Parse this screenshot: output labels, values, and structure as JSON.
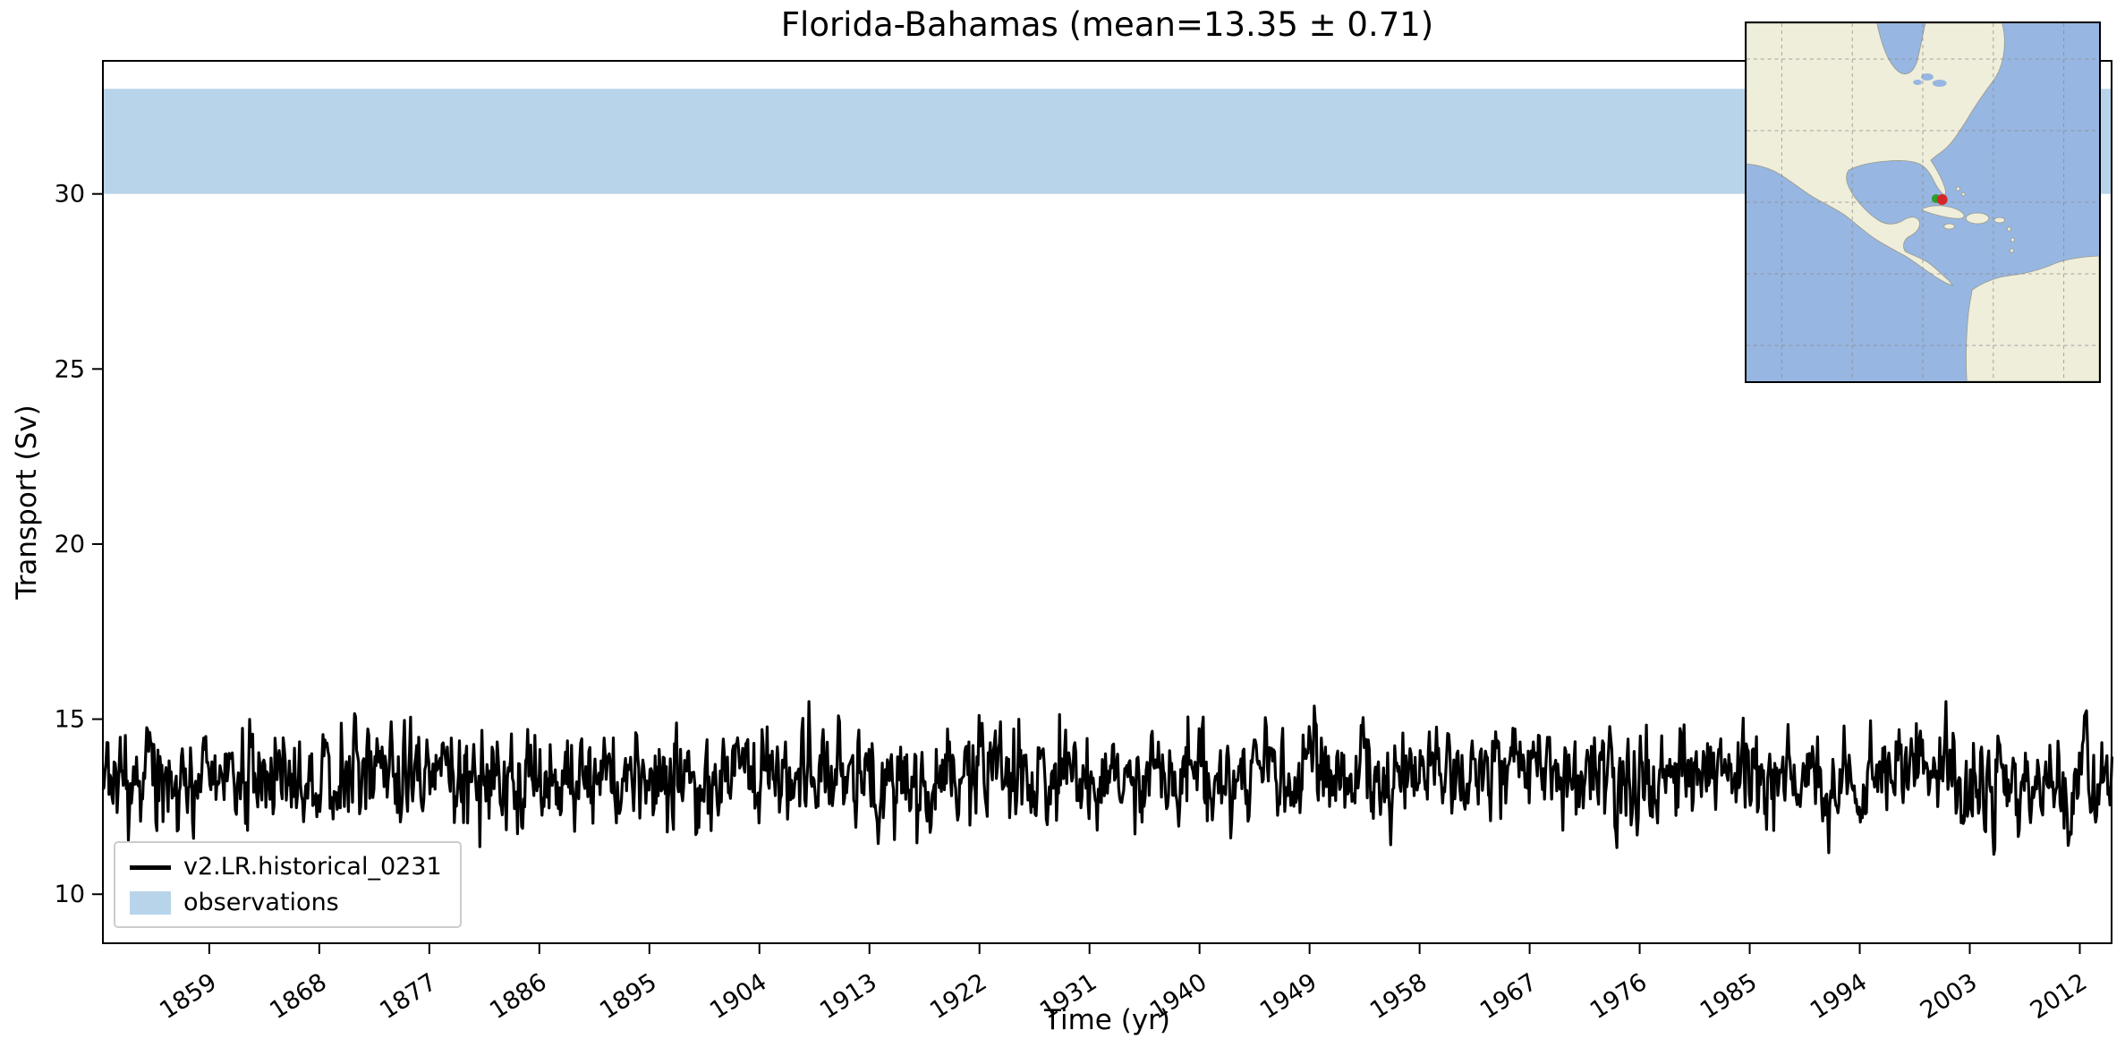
{
  "chart_data": {
    "type": "line",
    "title": "Florida-Bahamas (mean=13.35 ± 0.71)",
    "xlabel": "Time (yr)",
    "ylabel": "Transport (Sv)",
    "xlim": [
      1850.3,
      2014.6
    ],
    "ylim": [
      8.6,
      33.8
    ],
    "xticks": [
      1859,
      1868,
      1877,
      1886,
      1895,
      1904,
      1913,
      1922,
      1931,
      1940,
      1949,
      1958,
      1967,
      1976,
      1985,
      1994,
      2003,
      2012
    ],
    "yticks": [
      10,
      15,
      20,
      25,
      30
    ],
    "grid": false,
    "legend_position": "lower left",
    "series": [
      {
        "name": "v2.LR.historical_0231",
        "color": "#000000",
        "line_width": 3.2,
        "x_start": 1850.3,
        "x_end": 2014.6,
        "points_per_year": 12,
        "mean": 13.35,
        "std": 0.71,
        "min": 10.0,
        "max": 15.5,
        "synth": {
          "ar1": 0.45,
          "noise_sigma": 0.63,
          "seed": 20
        }
      }
    ],
    "bands": [
      {
        "label": "observations",
        "y_min": 30,
        "y_max": 33,
        "color": "#b8d4ea"
      }
    ]
  },
  "legend": {
    "entries": [
      {
        "label": "v2.LR.historical_0231",
        "type": "line",
        "color": "#000000"
      },
      {
        "label": "observations",
        "type": "patch",
        "color": "#b8d4ea"
      }
    ]
  },
  "inset_map": {
    "ocean_color": "#97b6e1",
    "land_color": "#efeedb",
    "gridline_color": "#8a8a8a",
    "model_marker_color": "#d62728",
    "obs_marker_color": "#2ca02c"
  }
}
